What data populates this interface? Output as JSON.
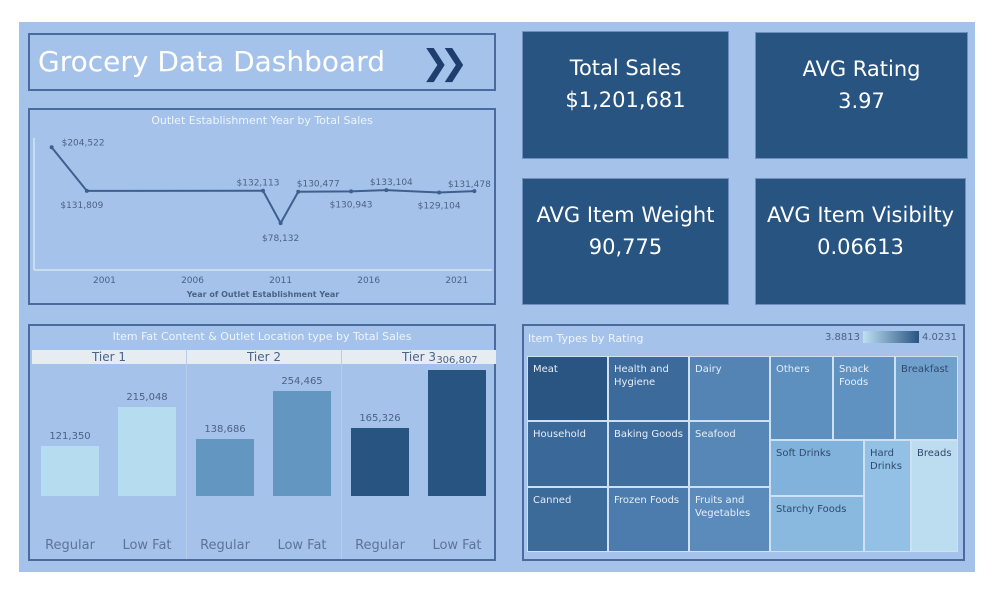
{
  "header": {
    "title": "Grocery Data Dashboard",
    "nav_icon": "double-chevron-right-icon"
  },
  "kpis": [
    {
      "label": "Total Sales",
      "value": "$1,201,681"
    },
    {
      "label": "AVG Rating",
      "value": "3.97"
    },
    {
      "label": "AVG Item Weight",
      "value": "90,775"
    },
    {
      "label": "AVG Item Visibilty",
      "value": "0.06613"
    }
  ],
  "colors": {
    "background": "#a5c3ea",
    "tile": "#285482",
    "border": "#4b6b9e",
    "line": "#3f5f8e"
  },
  "chart_data": [
    {
      "type": "line",
      "title": "Outlet Establishment Year by Total Sales",
      "xlabel": "Year of Outlet Establishment Year",
      "x": [
        1998,
        2000,
        2010,
        2011,
        2012,
        2015,
        2017,
        2020,
        2022
      ],
      "values": [
        204522,
        131809,
        132113,
        78132,
        130477,
        130943,
        133104,
        129104,
        131478
      ],
      "labels": [
        "$204,522",
        "$131,809",
        "$132,113",
        "$78,132",
        "$130,477",
        "$130,943",
        "$133,104",
        "$129,104",
        "$131,478"
      ],
      "xticks": [
        "2001",
        "2006",
        "2011",
        "2016",
        "2021"
      ],
      "xlim": [
        1997,
        2023
      ],
      "ylim": [
        0,
        220000
      ],
      "grid": false
    },
    {
      "type": "bar",
      "title": "Item Fat Content & Outlet Location type by Total Sales",
      "groups": [
        {
          "name": "Tier 1",
          "categories": [
            "Regular",
            "Low Fat"
          ],
          "values": [
            121350,
            215048
          ],
          "labels": [
            "121,350",
            "215,048"
          ],
          "color": "#b6dcf0"
        },
        {
          "name": "Tier 2",
          "categories": [
            "Regular",
            "Low Fat"
          ],
          "values": [
            138686,
            254465
          ],
          "labels": [
            "138,686",
            "254,465"
          ],
          "color": "#6396c0"
        },
        {
          "name": "Tier 3",
          "categories": [
            "Regular",
            "Low Fat"
          ],
          "values": [
            165326,
            306807
          ],
          "labels": [
            "165,326",
            "306,807"
          ],
          "color": "#285482"
        }
      ],
      "ylim": [
        0,
        410000
      ]
    },
    {
      "type": "heatmap",
      "title": "Item Types by Rating",
      "legend_min": "3.8813",
      "legend_max": "4.0231",
      "items": [
        {
          "name": "Meat",
          "color": "#2a5582"
        },
        {
          "name": "Health and Hygiene",
          "color": "#3c6a9a"
        },
        {
          "name": "Dairy",
          "color": "#5484b3"
        },
        {
          "name": "Household",
          "color": "#3a6898"
        },
        {
          "name": "Baking Goods",
          "color": "#3f6e9e"
        },
        {
          "name": "Seafood",
          "color": "#5787b6"
        },
        {
          "name": "Canned",
          "color": "#3c6a99"
        },
        {
          "name": "Frozen Foods",
          "color": "#4c7cad"
        },
        {
          "name": "Fruits and Vegetables",
          "color": "#5a8bbb"
        },
        {
          "name": "Others",
          "color": "#5d8fbf"
        },
        {
          "name": "Snack Foods",
          "color": "#6092c1"
        },
        {
          "name": "Breakfast",
          "color": "#70a1cc"
        },
        {
          "name": "Soft Drinks",
          "color": "#80b2db"
        },
        {
          "name": "Starchy Foods",
          "color": "#89b9df"
        },
        {
          "name": "Hard Drinks",
          "color": "#93c1e5"
        },
        {
          "name": "Breads",
          "color": "#bcdcef"
        }
      ]
    }
  ]
}
